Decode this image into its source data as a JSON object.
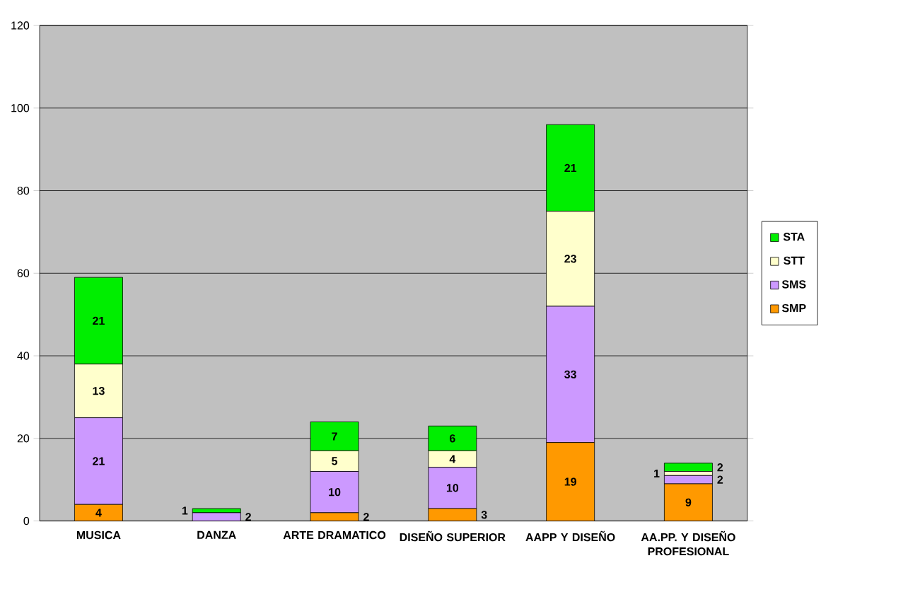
{
  "chart_data": {
    "type": "bar",
    "stacked": true,
    "categories": [
      "MUSICA",
      "DANZA",
      "ARTE DRAMATICO",
      "DISEÑO SUPERIOR",
      "AAPP Y DISEÑO",
      "AA.PP. Y DISEÑO PROFESIONAL"
    ],
    "series": [
      {
        "name": "SMP",
        "color": "#ff9900",
        "values": [
          4,
          0,
          2,
          3,
          19,
          9
        ],
        "value_labels": [
          "4",
          null,
          "2",
          "3",
          "19",
          "9"
        ]
      },
      {
        "name": "SMS",
        "color": "#cc99ff",
        "values": [
          21,
          2,
          10,
          10,
          33,
          2
        ],
        "value_labels": [
          "21",
          "2",
          "10",
          "10",
          "33",
          "2"
        ]
      },
      {
        "name": "STT",
        "color": "#ffffcc",
        "values": [
          13,
          0,
          5,
          4,
          23,
          1
        ],
        "value_labels": [
          "13",
          null,
          "5",
          "4",
          "23",
          "1"
        ]
      },
      {
        "name": "STA",
        "color": "#00ee00",
        "values": [
          21,
          1,
          7,
          6,
          21,
          2
        ],
        "value_labels": [
          "21",
          "1",
          "7",
          "6",
          "21",
          "2"
        ]
      }
    ],
    "ylim": [
      0,
      120
    ],
    "yticks": [
      0,
      20,
      40,
      60,
      80,
      100,
      120
    ],
    "grid": "y",
    "legend": "right"
  }
}
